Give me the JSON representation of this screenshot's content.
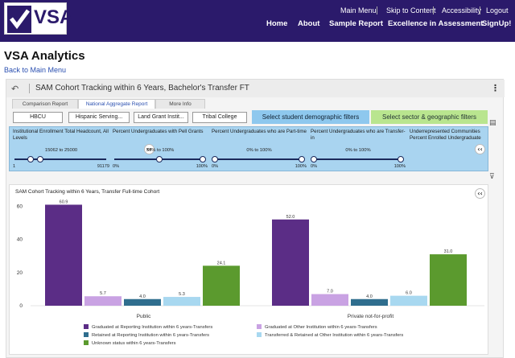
{
  "header": {
    "logo_text": "VSA",
    "utility_links": [
      "Main Menu",
      "Skip to Content",
      "Accessibility",
      "Logout"
    ],
    "nav_links": [
      "Home",
      "About",
      "Sample Report",
      "Excellence in Assessment",
      "SignUp!"
    ],
    "colors": {
      "brand": "#2b1a6b"
    }
  },
  "page": {
    "title": "VSA Analytics",
    "back_link": "Back to Main Menu"
  },
  "panel": {
    "undo_icon": "undo-icon",
    "title": "SAM Cohort Tracking within 6 Years, Bachelor's Transfer FT",
    "tabs": [
      "Comparison Report",
      "National Aggregate Report",
      "More Info"
    ],
    "active_tab": "National Aggregate Report",
    "chips": [
      "HBCU",
      "Hispanic Serving...",
      "Land Grant Instit...",
      "Tribal College"
    ],
    "demo_button": "Select student demographic filters",
    "sector_button": "Select sector & geographic filters"
  },
  "filters": [
    {
      "title": "Institutional Enrollment Total Headcount, All Levels",
      "range": "15062 to 25000",
      "min": "1",
      "max": "91179",
      "low": 0.165,
      "high": 0.275
    },
    {
      "title": "Percent Undergraduates with Pell Grants",
      "range": "50% to 100%",
      "min": "0%",
      "max": "100%",
      "low": 0.5,
      "high": 1.0
    },
    {
      "title": "Percent Undergraduates who are Part-time",
      "range": "0% to 100%",
      "min": "0%",
      "max": "100%",
      "low": 0.0,
      "high": 1.0
    },
    {
      "title": "Percent Undergraduates who are Transfer-in",
      "range": "0% to 100%",
      "min": "0%",
      "max": "100%",
      "low": 0.0,
      "high": 1.0
    },
    {
      "title": "Underrepresented Communities Percent Enrolled Undergraduate",
      "range": "0% to 100%",
      "min": "0%",
      "max": "100%",
      "low": 0.0,
      "high": 1.0
    }
  ],
  "chart_data": {
    "type": "bar",
    "title": "SAM Cohort Tracking within 6 Years, Transfer Full-time Cohort",
    "categories": [
      "Public",
      "Private not-for-profit"
    ],
    "ylim": [
      0,
      65
    ],
    "yticks": [
      0,
      20,
      40,
      60
    ],
    "grid": false,
    "legend_position": "bottom",
    "series": [
      {
        "name": "Graduated at Reporting Institution within 6 years-Transfers",
        "color": "#5b2d86",
        "values": [
          60.9,
          52.0
        ],
        "labels": [
          "60.9",
          "52.0"
        ]
      },
      {
        "name": "Graduated at Other Institution within 6 years-Transfers",
        "color": "#c9a2e3",
        "values": [
          5.7,
          7.0
        ],
        "labels": [
          "5.7",
          "7.0"
        ]
      },
      {
        "name": "Retained at Reporting Institution within 6 years-Transfers",
        "color": "#2f6e8e",
        "values": [
          4.0,
          4.0
        ],
        "labels": [
          "4.0",
          "4.0"
        ]
      },
      {
        "name": "Transferred & Retained at Other Institution within 6 years-Transfers",
        "color": "#a8d8f0",
        "values": [
          5.3,
          6.0
        ],
        "labels": [
          "5.3",
          "6.0"
        ]
      },
      {
        "name": "Unknown status within 6 years-Transfers",
        "color": "#5b9a2e",
        "values": [
          24.1,
          31.0
        ],
        "labels": [
          "24.1",
          "31.0"
        ]
      }
    ]
  }
}
